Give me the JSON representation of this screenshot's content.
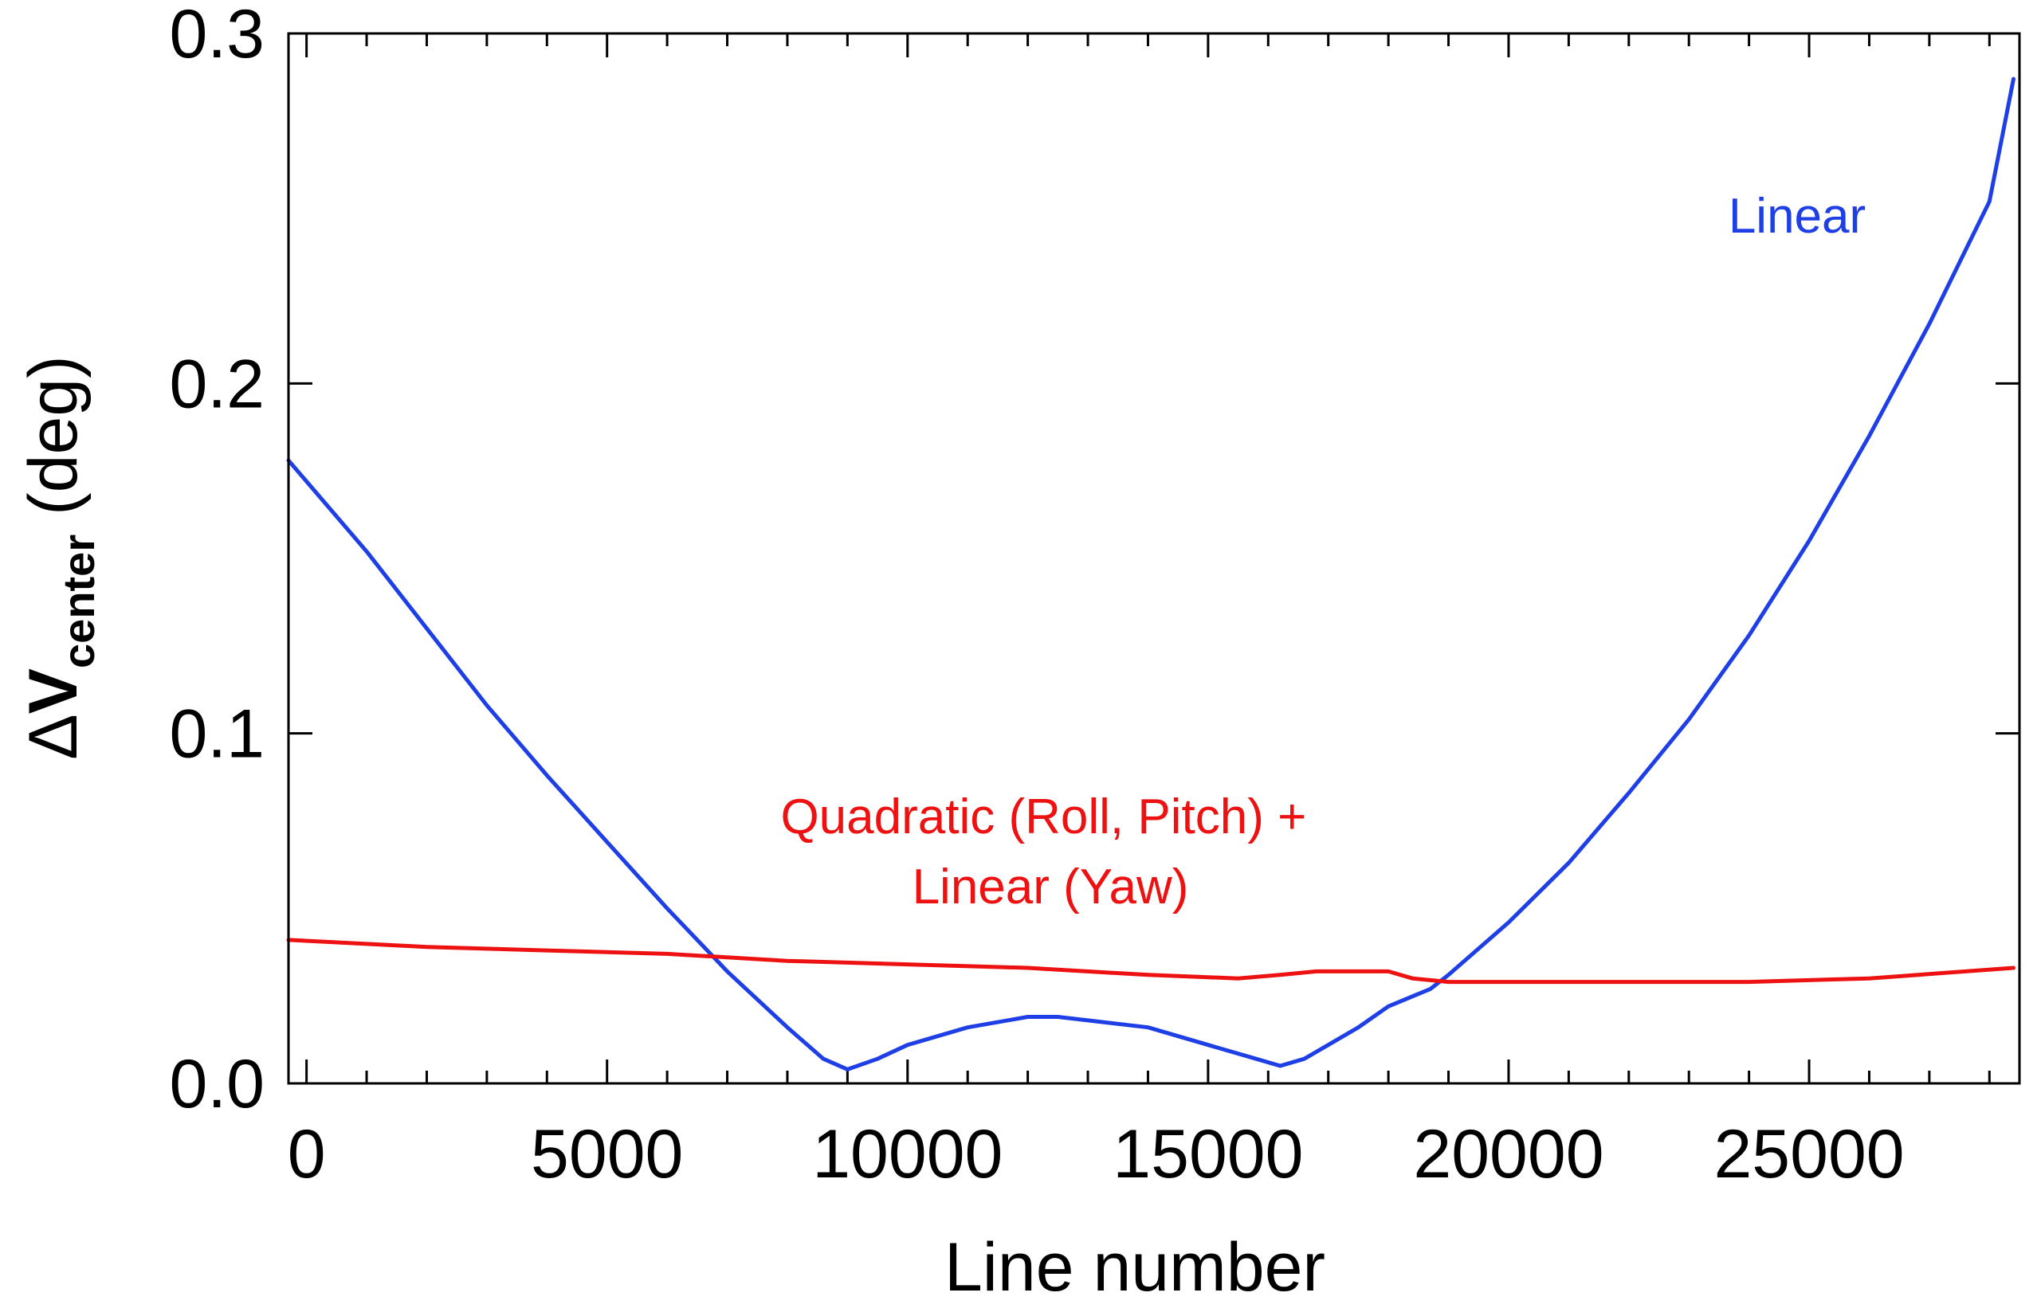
{
  "chart_data": {
    "type": "line",
    "title": "",
    "xlabel": "Line number",
    "ylabel": {
      "delta": "Δ",
      "main": "V",
      "sub": "center",
      "unit": " (deg)"
    },
    "xlim": [
      -300,
      28500
    ],
    "ylim": [
      0.0,
      0.3
    ],
    "x_ticks": [
      0,
      5000,
      10000,
      15000,
      20000,
      25000
    ],
    "x_tick_labels": [
      "0",
      "5000",
      "10000",
      "15000",
      "20000",
      "25000"
    ],
    "y_ticks": [
      0.0,
      0.1,
      0.2,
      0.3
    ],
    "y_tick_labels": [
      "0.0",
      "0.1",
      "0.2",
      "0.3"
    ],
    "x_minor_step": 1000,
    "grid": false,
    "series": [
      {
        "name": "Linear",
        "color": "#1f3fe6",
        "x": [
          -300,
          1000,
          2000,
          3000,
          4000,
          5000,
          6000,
          7000,
          8000,
          8600,
          9000,
          9500,
          10000,
          11000,
          12000,
          12500,
          13000,
          14000,
          15000,
          15800,
          16200,
          16600,
          17000,
          17500,
          18000,
          18700,
          19000,
          20000,
          21000,
          22000,
          23000,
          24000,
          25000,
          26000,
          27000,
          28000,
          28400
        ],
        "y": [
          0.178,
          0.152,
          0.13,
          0.108,
          0.088,
          0.069,
          0.05,
          0.032,
          0.016,
          0.007,
          0.004,
          0.007,
          0.011,
          0.016,
          0.019,
          0.019,
          0.018,
          0.016,
          0.011,
          0.007,
          0.005,
          0.007,
          0.011,
          0.016,
          0.022,
          0.027,
          0.031,
          0.046,
          0.063,
          0.083,
          0.104,
          0.128,
          0.155,
          0.185,
          0.217,
          0.252,
          0.287
        ]
      },
      {
        "name": "Quadratic (Roll, Pitch) + Linear (Yaw)",
        "color": "#ee1111",
        "x": [
          -300,
          2000,
          4000,
          6000,
          8000,
          10000,
          12000,
          14000,
          15500,
          16200,
          16800,
          17500,
          18000,
          18400,
          19000,
          20000,
          22000,
          24000,
          26000,
          28400
        ],
        "y": [
          0.041,
          0.039,
          0.038,
          0.037,
          0.035,
          0.034,
          0.033,
          0.031,
          0.03,
          0.031,
          0.032,
          0.032,
          0.032,
          0.03,
          0.029,
          0.029,
          0.029,
          0.029,
          0.03,
          0.033
        ]
      }
    ],
    "annotations": [
      {
        "id": "linear",
        "lines": [
          "Linear"
        ],
        "color": "#1f3fe6"
      },
      {
        "id": "quadratic",
        "lines": [
          "Quadratic (Roll, Pitch) +",
          "Linear (Yaw)"
        ],
        "color": "#ee1111"
      }
    ]
  }
}
